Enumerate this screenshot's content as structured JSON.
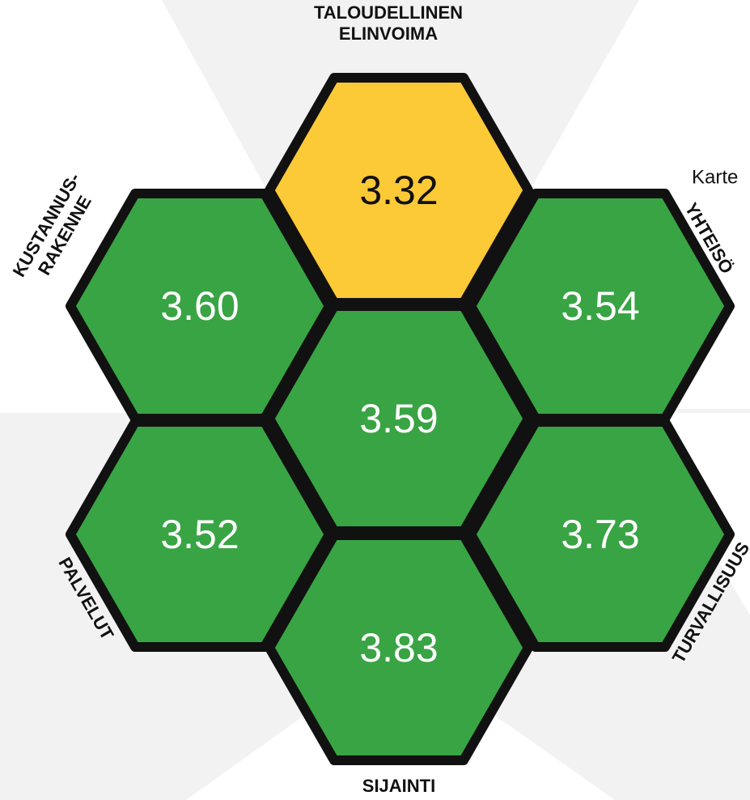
{
  "hexes": [
    {
      "label": [
        "TALOUDELLINEN",
        "ELINVOIMA"
      ],
      "value": "3.32",
      "color": "#fcc937"
    },
    {
      "label": [
        "KUSTANNUS-",
        "RAKENNE"
      ],
      "value": "3.60",
      "color": "#39a444"
    },
    {
      "label": [
        "YHTEISÖ"
      ],
      "value": "3.54",
      "color": "#39a444"
    },
    {
      "label": [],
      "value": "3.59",
      "color": "#39a444"
    },
    {
      "label": [
        "PALVELUT"
      ],
      "value": "3.52",
      "color": "#39a444"
    },
    {
      "label": [
        "TURVALLISUUS"
      ],
      "value": "3.73",
      "color": "#39a444"
    },
    {
      "label": [
        "SIJAINTI"
      ],
      "value": "3.83",
      "color": "#39a444"
    }
  ],
  "side_text": "Karte"
}
